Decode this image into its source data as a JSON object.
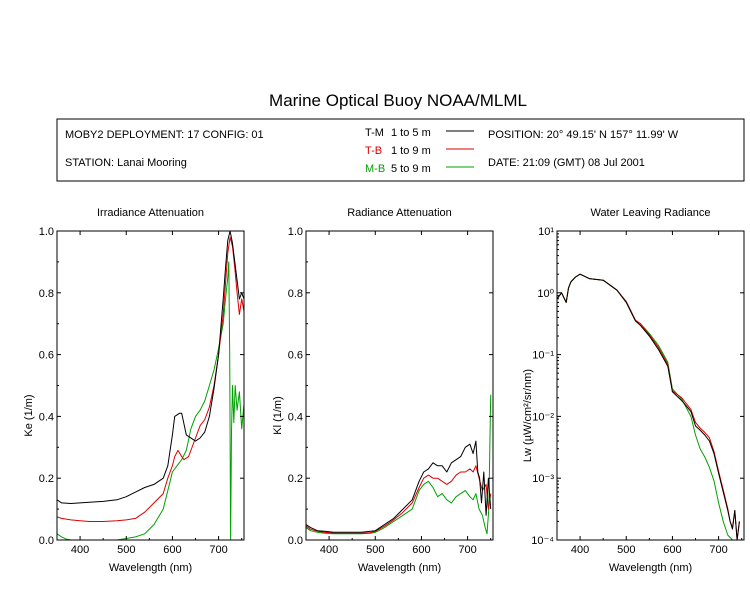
{
  "title": "Marine Optical Buoy NOAA/MLML",
  "info": {
    "deployment": "MOBY2 DEPLOYMENT: 17 CONFIG: 01",
    "station": "STATION: Lanai Mooring",
    "position": "POSITION: 20° 49.15' N   157° 11.99' W",
    "date": "DATE: 21:09 (GMT) 08 Jul 2001"
  },
  "legend": [
    {
      "code": "T-M",
      "range": "1 to 5  m",
      "color": "#000000"
    },
    {
      "code": "T-B",
      "range": "1 to 9  m",
      "color": "#dd0000"
    },
    {
      "code": "M-B",
      "range": "5 to 9  m",
      "color": "#00a000"
    }
  ],
  "chart_data": [
    {
      "type": "line",
      "title": "Irradiance Attenuation",
      "xlabel": "Wavelength (nm)",
      "ylabel": "Ke  (1/m)",
      "xlim": [
        350,
        755
      ],
      "ylim": [
        0,
        1
      ],
      "xticks": [
        "400",
        "500",
        "600",
        "700"
      ],
      "yticks": [
        "0.0",
        "0.2",
        "0.4",
        "0.6",
        "0.8",
        "1.0"
      ],
      "series": [
        {
          "name": "T-M",
          "color": "#000000",
          "x": [
            350,
            360,
            380,
            400,
            420,
            450,
            480,
            500,
            520,
            540,
            560,
            580,
            590,
            600,
            605,
            615,
            620,
            630,
            650,
            660,
            670,
            680,
            690,
            700,
            710,
            715,
            720,
            725,
            730,
            735,
            740,
            745,
            750,
            755
          ],
          "y": [
            0.13,
            0.12,
            0.118,
            0.12,
            0.122,
            0.125,
            0.13,
            0.14,
            0.155,
            0.17,
            0.18,
            0.2,
            0.24,
            0.34,
            0.4,
            0.41,
            0.41,
            0.34,
            0.32,
            0.33,
            0.35,
            0.4,
            0.49,
            0.6,
            0.78,
            0.88,
            0.97,
            1.0,
            0.96,
            0.9,
            0.84,
            0.78,
            0.8,
            0.78
          ]
        },
        {
          "name": "T-B",
          "color": "#dd0000",
          "x": [
            350,
            360,
            380,
            400,
            420,
            450,
            480,
            500,
            520,
            540,
            560,
            580,
            590,
            600,
            605,
            612,
            620,
            625,
            635,
            650,
            660,
            670,
            680,
            690,
            700,
            710,
            720,
            725,
            730,
            735,
            740,
            745,
            750,
            755
          ],
          "y": [
            0.075,
            0.07,
            0.065,
            0.062,
            0.06,
            0.06,
            0.062,
            0.065,
            0.07,
            0.09,
            0.12,
            0.15,
            0.2,
            0.24,
            0.27,
            0.29,
            0.27,
            0.26,
            0.27,
            0.33,
            0.37,
            0.39,
            0.43,
            0.5,
            0.6,
            0.73,
            0.93,
            0.98,
            0.95,
            0.88,
            0.8,
            0.73,
            0.78,
            0.74
          ]
        },
        {
          "name": "M-B",
          "color": "#00a000",
          "x": [
            350,
            360,
            370,
            380,
            400,
            420,
            450,
            480,
            500,
            520,
            540,
            560,
            580,
            590,
            600,
            610,
            620,
            630,
            640,
            650,
            660,
            670,
            680,
            690,
            700,
            710,
            715,
            720,
            722,
            724,
            726,
            728,
            730,
            733,
            736,
            740,
            745,
            750,
            755
          ],
          "y": [
            0.02,
            0.01,
            0.003,
            0.0,
            0.0,
            0.0,
            0.0,
            0.0,
            0.005,
            0.01,
            0.02,
            0.05,
            0.1,
            0.16,
            0.22,
            0.24,
            0.26,
            0.29,
            0.36,
            0.4,
            0.42,
            0.45,
            0.5,
            0.55,
            0.62,
            0.7,
            0.78,
            0.85,
            0.9,
            0.6,
            0.0,
            0.35,
            0.5,
            0.38,
            0.5,
            0.42,
            0.48,
            0.36,
            0.44
          ]
        }
      ]
    },
    {
      "type": "line",
      "title": "Radiance Attenuation",
      "xlabel": "Wavelength (nm)",
      "ylabel": "Kl  (1/m)",
      "xlim": [
        350,
        755
      ],
      "ylim": [
        0,
        1
      ],
      "xticks": [
        "400",
        "500",
        "600",
        "700"
      ],
      "yticks": [
        "0.0",
        "0.2",
        "0.4",
        "0.6",
        "0.8",
        "1.0"
      ],
      "series": [
        {
          "name": "T-M",
          "color": "#000000",
          "x": [
            350,
            360,
            375,
            390,
            410,
            440,
            470,
            490,
            500,
            520,
            540,
            560,
            580,
            595,
            605,
            615,
            625,
            635,
            645,
            655,
            665,
            675,
            685,
            695,
            705,
            712,
            718,
            722,
            726,
            730,
            735,
            740,
            745,
            750
          ],
          "y": [
            0.05,
            0.04,
            0.03,
            0.028,
            0.025,
            0.025,
            0.025,
            0.028,
            0.03,
            0.05,
            0.07,
            0.1,
            0.13,
            0.19,
            0.22,
            0.23,
            0.25,
            0.24,
            0.24,
            0.22,
            0.25,
            0.26,
            0.27,
            0.3,
            0.31,
            0.28,
            0.32,
            0.22,
            0.2,
            0.12,
            0.22,
            0.08,
            0.2,
            0.1
          ]
        },
        {
          "name": "T-B",
          "color": "#dd0000",
          "x": [
            350,
            360,
            375,
            390,
            410,
            440,
            470,
            490,
            500,
            520,
            540,
            560,
            580,
            595,
            605,
            615,
            625,
            635,
            645,
            655,
            665,
            675,
            685,
            695,
            705,
            712,
            718,
            725,
            732,
            740,
            745,
            750
          ],
          "y": [
            0.045,
            0.035,
            0.028,
            0.025,
            0.022,
            0.022,
            0.022,
            0.024,
            0.028,
            0.045,
            0.065,
            0.09,
            0.12,
            0.17,
            0.2,
            0.21,
            0.2,
            0.2,
            0.19,
            0.18,
            0.19,
            0.21,
            0.22,
            0.22,
            0.23,
            0.22,
            0.24,
            0.2,
            0.16,
            0.18,
            0.1,
            0.15
          ]
        },
        {
          "name": "M-B",
          "color": "#00a000",
          "x": [
            350,
            360,
            375,
            390,
            410,
            440,
            470,
            490,
            500,
            520,
            540,
            560,
            580,
            595,
            605,
            615,
            625,
            635,
            645,
            655,
            665,
            675,
            685,
            695,
            705,
            712,
            718,
            725,
            732,
            738,
            742,
            746,
            750
          ],
          "y": [
            0.04,
            0.03,
            0.025,
            0.022,
            0.02,
            0.02,
            0.02,
            0.022,
            0.025,
            0.04,
            0.06,
            0.08,
            0.1,
            0.16,
            0.18,
            0.19,
            0.17,
            0.14,
            0.15,
            0.13,
            0.12,
            0.14,
            0.15,
            0.16,
            0.14,
            0.13,
            0.15,
            0.1,
            0.08,
            0.04,
            0.02,
            0.1,
            0.47
          ]
        }
      ]
    },
    {
      "type": "line",
      "title": "Water Leaving Radiance",
      "xlabel": "Wavelength (nm)",
      "ylabel": "Lw  (µW/cm²/sr/nm)",
      "xlim": [
        350,
        755
      ],
      "ylim": [
        0.0001,
        10
      ],
      "yscale": "log",
      "xticks": [
        "400",
        "500",
        "600",
        "700"
      ],
      "yticks": [
        "10⁻⁴",
        "10⁻³",
        "10⁻²",
        "10⁻¹",
        "10⁰",
        "10¹"
      ],
      "series": [
        {
          "name": "T-M",
          "color": "#000000",
          "x": [
            350,
            360,
            370,
            375,
            380,
            390,
            400,
            420,
            450,
            480,
            500,
            520,
            530,
            550,
            570,
            590,
            600,
            620,
            640,
            650,
            660,
            670,
            680,
            690,
            700,
            710,
            720,
            725,
            730,
            735,
            740,
            745
          ],
          "y": [
            0.8,
            1.0,
            0.7,
            1.2,
            1.5,
            1.8,
            2.0,
            1.7,
            1.6,
            1.1,
            0.7,
            0.35,
            0.3,
            0.2,
            0.12,
            0.065,
            0.025,
            0.018,
            0.012,
            0.007,
            0.006,
            0.005,
            0.004,
            0.0025,
            0.0012,
            0.0006,
            0.0003,
            0.0002,
            0.00015,
            0.0003,
            0.0001,
            0.0002
          ]
        },
        {
          "name": "T-B",
          "color": "#dd0000",
          "x": [
            350,
            360,
            370,
            375,
            380,
            390,
            400,
            420,
            450,
            480,
            500,
            520,
            530,
            550,
            570,
            590,
            600,
            620,
            640,
            650,
            660,
            670,
            680,
            690,
            700,
            710,
            720,
            725,
            730,
            735,
            740,
            745
          ],
          "y": [
            0.8,
            1.0,
            0.7,
            1.2,
            1.5,
            1.8,
            2.0,
            1.7,
            1.6,
            1.1,
            0.72,
            0.36,
            0.32,
            0.21,
            0.13,
            0.07,
            0.026,
            0.02,
            0.013,
            0.008,
            0.0065,
            0.0055,
            0.0045,
            0.0027,
            0.0013,
            0.00065,
            0.00032,
            0.0002,
            0.00016,
            0.0003,
            0.0001,
            0.0002
          ]
        },
        {
          "name": "M-B",
          "color": "#00a000",
          "x": [
            350,
            360,
            370,
            375,
            380,
            390,
            400,
            420,
            450,
            480,
            500,
            520,
            530,
            550,
            570,
            590,
            600,
            620,
            640,
            650,
            660,
            670,
            680,
            690,
            700,
            710,
            720,
            730
          ],
          "y": [
            0.8,
            1.0,
            0.7,
            1.2,
            1.5,
            1.8,
            2.0,
            1.7,
            1.6,
            1.1,
            0.7,
            0.35,
            0.32,
            0.22,
            0.14,
            0.075,
            0.028,
            0.019,
            0.01,
            0.005,
            0.003,
            0.0022,
            0.0015,
            0.0009,
            0.0004,
            0.0002,
            0.00012,
            0.0001
          ]
        }
      ]
    }
  ]
}
